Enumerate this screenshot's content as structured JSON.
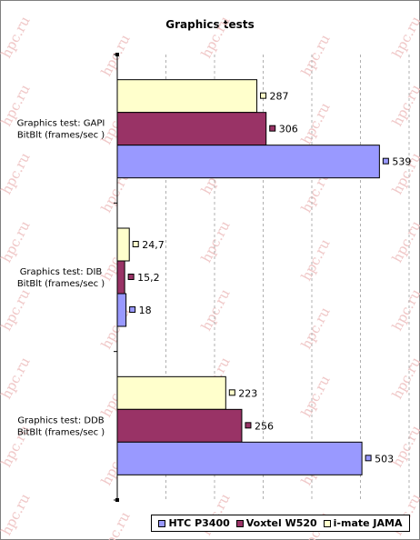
{
  "watermark": "hpc.ru",
  "chart_data": {
    "type": "bar",
    "orientation": "horizontal",
    "title": "Graphics tests",
    "categories": [
      "Graphics test: GAPI BitBlt (frames/sec )",
      "Graphics test: DIB BitBlt (frames/sec )",
      "Graphics test: DDB BitBlt (frames/sec )"
    ],
    "category_label_lines": [
      [
        "Graphics test: GAPI",
        "BitBlt (frames/sec )"
      ],
      [
        "Graphics test: DIB",
        "BitBlt (frames/sec )"
      ],
      [
        "Graphics test: DDB",
        "BitBlt (frames/sec )"
      ]
    ],
    "series": [
      {
        "name": "i-mate JAMA",
        "color": "#ffffcc",
        "values": [
          287,
          24.7,
          223
        ],
        "labels": [
          "287",
          "24,7",
          "223"
        ]
      },
      {
        "name": "Voxtel W520",
        "color": "#993366",
        "values": [
          306,
          15.2,
          256
        ],
        "labels": [
          "306",
          "15,2",
          "256"
        ]
      },
      {
        "name": "HTC P3400",
        "color": "#9999ff",
        "values": [
          539,
          18,
          503
        ],
        "labels": [
          "539",
          "18",
          "503"
        ]
      }
    ],
    "legend_order": [
      2,
      1,
      0
    ],
    "xlim": [
      0,
      600
    ],
    "grid": "vertical dashed",
    "legend_position": "bottom-right"
  }
}
